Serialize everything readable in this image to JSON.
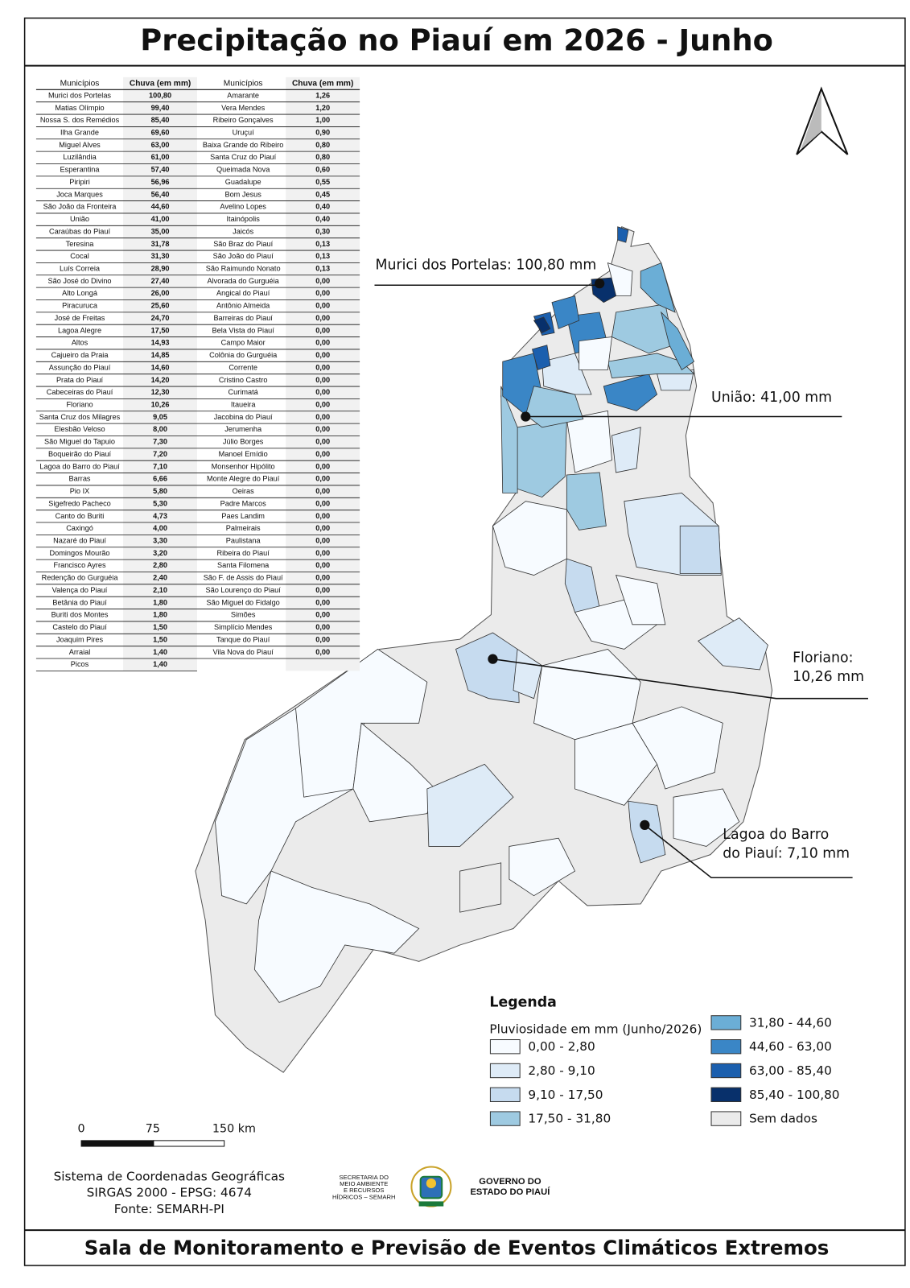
{
  "title": "Precipitação no Piauí em 2026 - Junho",
  "table": {
    "headers": [
      "Municípios",
      "Chuva (em mm)",
      "Municípios",
      "Chuva (em mm)"
    ],
    "left_rows": [
      [
        "Murici dos Portelas",
        "100,80"
      ],
      [
        "Matias Olímpio",
        "99,40"
      ],
      [
        "Nossa S. dos Remédios",
        "85,40"
      ],
      [
        "Ilha Grande",
        "69,60"
      ],
      [
        "Miguel Alves",
        "63,00"
      ],
      [
        "Luzilândia",
        "61,00"
      ],
      [
        "Esperantina",
        "57,40"
      ],
      [
        "Piripiri",
        "56,96"
      ],
      [
        "Joca Marques",
        "56,40"
      ],
      [
        "São João da Fronteira",
        "44,60"
      ],
      [
        "União",
        "41,00"
      ],
      [
        "Caraúbas do Piauí",
        "35,00"
      ],
      [
        "Teresina",
        "31,78"
      ],
      [
        "Cocal",
        "31,30"
      ],
      [
        "Luís Correia",
        "28,90"
      ],
      [
        "São José do Divino",
        "27,40"
      ],
      [
        "Alto Longá",
        "26,00"
      ],
      [
        "Piracuruca",
        "25,60"
      ],
      [
        "José de Freitas",
        "24,70"
      ],
      [
        "Lagoa Alegre",
        "17,50"
      ],
      [
        "Altos",
        "14,93"
      ],
      [
        "Cajueiro da Praia",
        "14,85"
      ],
      [
        "Assunção do Piauí",
        "14,60"
      ],
      [
        "Prata do Piauí",
        "14,20"
      ],
      [
        "Cabeceiras do Piauí",
        "12,30"
      ],
      [
        "Floriano",
        "10,26"
      ],
      [
        "Santa Cruz dos Milagres",
        "9,05"
      ],
      [
        "Elesbão Veloso",
        "8,00"
      ],
      [
        "São Miguel do Tapuio",
        "7,30"
      ],
      [
        "Boqueirão do Piauí",
        "7,20"
      ],
      [
        "Lagoa do Barro do Piauí",
        "7,10"
      ],
      [
        "Barras",
        "6,66"
      ],
      [
        "Pio IX",
        "5,80"
      ],
      [
        "Sigefredo Pacheco",
        "5,30"
      ],
      [
        "Canto do Buriti",
        "4,73"
      ],
      [
        "Caxingó",
        "4,00"
      ],
      [
        "Nazaré do Piauí",
        "3,30"
      ],
      [
        "Domingos Mourão",
        "3,20"
      ],
      [
        "Francisco Ayres",
        "2,80"
      ],
      [
        "Redenção do Gurguéia",
        "2,40"
      ],
      [
        "Valença do Piauí",
        "2,10"
      ],
      [
        "Betânia do Piauí",
        "1,80"
      ],
      [
        "Buriti dos Montes",
        "1,80"
      ],
      [
        "Castelo do Piauí",
        "1,50"
      ],
      [
        "Joaquim Pires",
        "1,50"
      ],
      [
        "Arraial",
        "1,40"
      ],
      [
        "Picos",
        "1,40"
      ]
    ],
    "right_rows": [
      [
        "Amarante",
        "1,26"
      ],
      [
        "Vera Mendes",
        "1,20"
      ],
      [
        "Ribeiro Gonçalves",
        "1,00"
      ],
      [
        "Uruçuí",
        "0,90"
      ],
      [
        "Baixa Grande do Ribeiro",
        "0,80"
      ],
      [
        "Santa Cruz do Piauí",
        "0,80"
      ],
      [
        "Queimada Nova",
        "0,60"
      ],
      [
        "Guadalupe",
        "0,55"
      ],
      [
        "Bom Jesus",
        "0,45"
      ],
      [
        "Avelino Lopes",
        "0,40"
      ],
      [
        "Itainópolis",
        "0,40"
      ],
      [
        "Jaicós",
        "0,30"
      ],
      [
        "São Braz do Piauí",
        "0,13"
      ],
      [
        "São João do Piauí",
        "0,13"
      ],
      [
        "São Raimundo Nonato",
        "0,13"
      ],
      [
        "Alvorada do Gurguéia",
        "0,00"
      ],
      [
        "Angical do Piauí",
        "0,00"
      ],
      [
        "Antônio Almeida",
        "0,00"
      ],
      [
        "Barreiras do Piauí",
        "0,00"
      ],
      [
        "Bela Vista do Piauí",
        "0,00"
      ],
      [
        "Campo Maior",
        "0,00"
      ],
      [
        "Colônia do Gurguéia",
        "0,00"
      ],
      [
        "Corrente",
        "0,00"
      ],
      [
        "Cristino Castro",
        "0,00"
      ],
      [
        "Curimatá",
        "0,00"
      ],
      [
        "Itaueira",
        "0,00"
      ],
      [
        "Jacobina do Piauí",
        "0,00"
      ],
      [
        "Jerumenha",
        "0,00"
      ],
      [
        "Júlio Borges",
        "0,00"
      ],
      [
        "Manoel Emídio",
        "0,00"
      ],
      [
        "Monsenhor Hipólito",
        "0,00"
      ],
      [
        "Monte Alegre do Piauí",
        "0,00"
      ],
      [
        "Oeiras",
        "0,00"
      ],
      [
        "Padre Marcos",
        "0,00"
      ],
      [
        "Paes Landim",
        "0,00"
      ],
      [
        "Palmeirais",
        "0,00"
      ],
      [
        "Paulistana",
        "0,00"
      ],
      [
        "Ribeira do Piauí",
        "0,00"
      ],
      [
        "Santa Filomena",
        "0,00"
      ],
      [
        "São F. de Assis do Piauí",
        "0,00"
      ],
      [
        "São Lourenço do Piauí",
        "0,00"
      ],
      [
        "São Miguel do Fidalgo",
        "0,00"
      ],
      [
        "Simões",
        "0,00"
      ],
      [
        "Simplício Mendes",
        "0,00"
      ],
      [
        "Tanque do Piauí",
        "0,00"
      ],
      [
        "Vila Nova do Piauí",
        "0,00"
      ]
    ]
  },
  "annotations": [
    {
      "lines": [
        "Murici dos Portelas: 100,80 mm"
      ]
    },
    {
      "lines": [
        "União: 41,00 mm"
      ]
    },
    {
      "lines": [
        "Floriano:",
        "10,26 mm"
      ]
    },
    {
      "lines": [
        "Lagoa do Barro",
        "do Piauí: 7,10 mm"
      ]
    }
  ],
  "legend": {
    "title": "Legenda",
    "subtitle": "Pluviosidade em mm (Junho/2026)",
    "items": [
      {
        "label": "0,00 - 2,80",
        "color": "#f7fbff"
      },
      {
        "label": "2,80 - 9,10",
        "color": "#deebf7"
      },
      {
        "label": "9,10 - 17,50",
        "color": "#c6dbef"
      },
      {
        "label": "17,50 - 31,80",
        "color": "#9ecae1"
      },
      {
        "label": "31,80 - 44,60",
        "color": "#6baed6"
      },
      {
        "label": "44,60 - 63,00",
        "color": "#3a86c6"
      },
      {
        "label": "63,00 - 85,40",
        "color": "#1b5fae"
      },
      {
        "label": "85,40 - 100,80",
        "color": "#08306b"
      },
      {
        "label": "Sem dados",
        "color": "#ebebeb"
      }
    ]
  },
  "scale_bar": {
    "labels": [
      "0",
      "75",
      "150 km"
    ]
  },
  "credits": {
    "lines": [
      "Sistema de Coordenadas Geográficas",
      "SIRGAS 2000 - EPSG: 4674",
      "Fonte: SEMARH-PI"
    ]
  },
  "logos": {
    "semarh_lines": [
      "SECRETARIA DO",
      "MEIO AMBIENTE",
      "E RECURSOS",
      "HÍDRICOS – SEMARH"
    ],
    "government_lines": [
      "GOVERNO DO",
      "ESTADO DO PIAUÍ"
    ]
  },
  "footer": "Sala de Monitoramento e Previsão de Eventos Climáticos Extremos"
}
